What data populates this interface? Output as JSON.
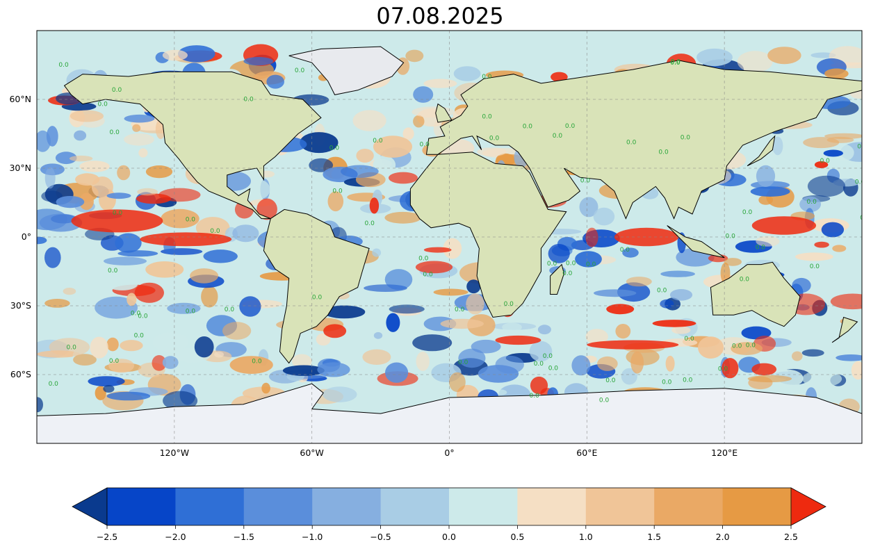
{
  "title": "07.08.2025",
  "map": {
    "projection": "plate-carree",
    "lon_range": [
      -180,
      180
    ],
    "lat_range": [
      -90,
      90
    ],
    "gridlines": true,
    "x_ticks": [
      {
        "value": -120,
        "label": "120°W"
      },
      {
        "value": -60,
        "label": "60°W"
      },
      {
        "value": 0,
        "label": "0°"
      },
      {
        "value": 60,
        "label": "60°E"
      },
      {
        "value": 120,
        "label": "120°E"
      }
    ],
    "y_ticks": [
      {
        "value": 60,
        "label": "60°N"
      },
      {
        "value": 30,
        "label": "30°N"
      },
      {
        "value": 0,
        "label": "0°"
      },
      {
        "value": -30,
        "label": "30°S"
      },
      {
        "value": -60,
        "label": "60°S"
      }
    ],
    "contour_label": "0.0"
  },
  "colorbar": {
    "orientation": "horizontal",
    "extend": "both",
    "boundaries": [
      -2.5,
      -2.0,
      -1.5,
      -1.0,
      -0.5,
      0.0,
      0.5,
      1.0,
      1.5,
      2.0,
      2.5
    ],
    "tick_labels": [
      "−2.5",
      "−2.0",
      "−1.5",
      "−1.0",
      "−0.5",
      "0.0",
      "0.5",
      "1.0",
      "1.5",
      "2.0",
      "2.5"
    ],
    "colors": [
      "#0645c8",
      "#2f6fd6",
      "#5a8edb",
      "#86afe0",
      "#a9cde5",
      "#cdeaea",
      "#f5dfc4",
      "#f0c598",
      "#eaa965",
      "#e69a44"
    ],
    "under_color": "#0a3a8e",
    "over_color": "#ee2a0f"
  }
}
